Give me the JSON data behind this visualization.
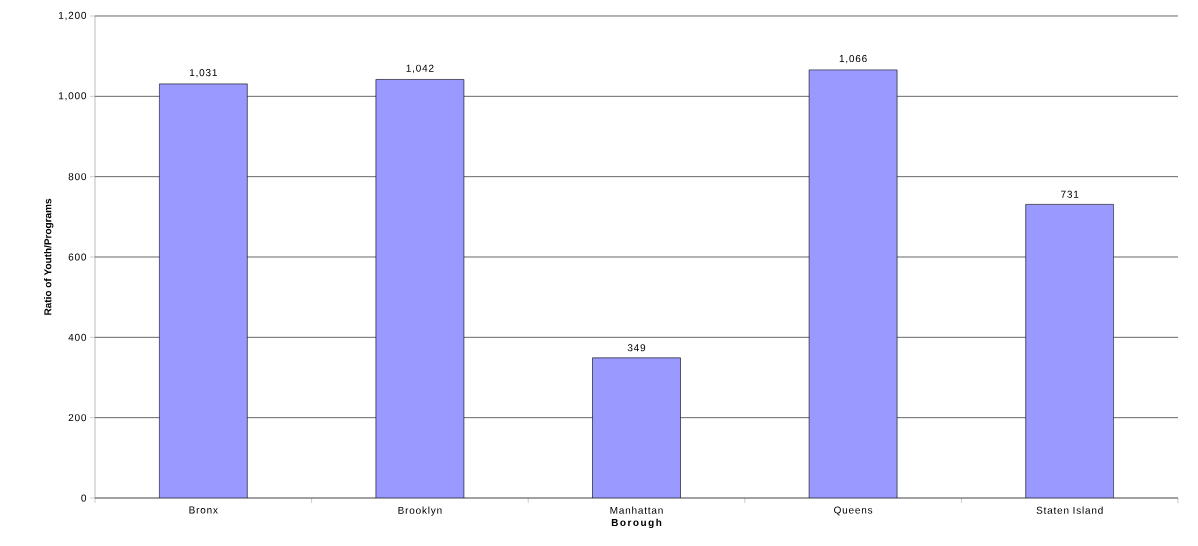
{
  "chart_data": {
    "type": "bar",
    "xlabel": "Borough",
    "ylabel": "Ratio of Youth/Programs",
    "categories": [
      "Bronx",
      "Brooklyn",
      "Manhattan",
      "Queens",
      "Staten Island"
    ],
    "values": [
      1031,
      1042,
      349,
      1066,
      731
    ],
    "value_labels": [
      "1,031",
      "1,042",
      "349",
      "1,066",
      "731"
    ],
    "color": "#9999ff",
    "ylim": [
      0,
      1200
    ],
    "yticks": [
      0,
      200,
      400,
      600,
      800,
      {
        "value": 1000,
        "label": "1,000"
      },
      {
        "value": 1200,
        "label": "1,200"
      }
    ],
    "grid": "y"
  }
}
